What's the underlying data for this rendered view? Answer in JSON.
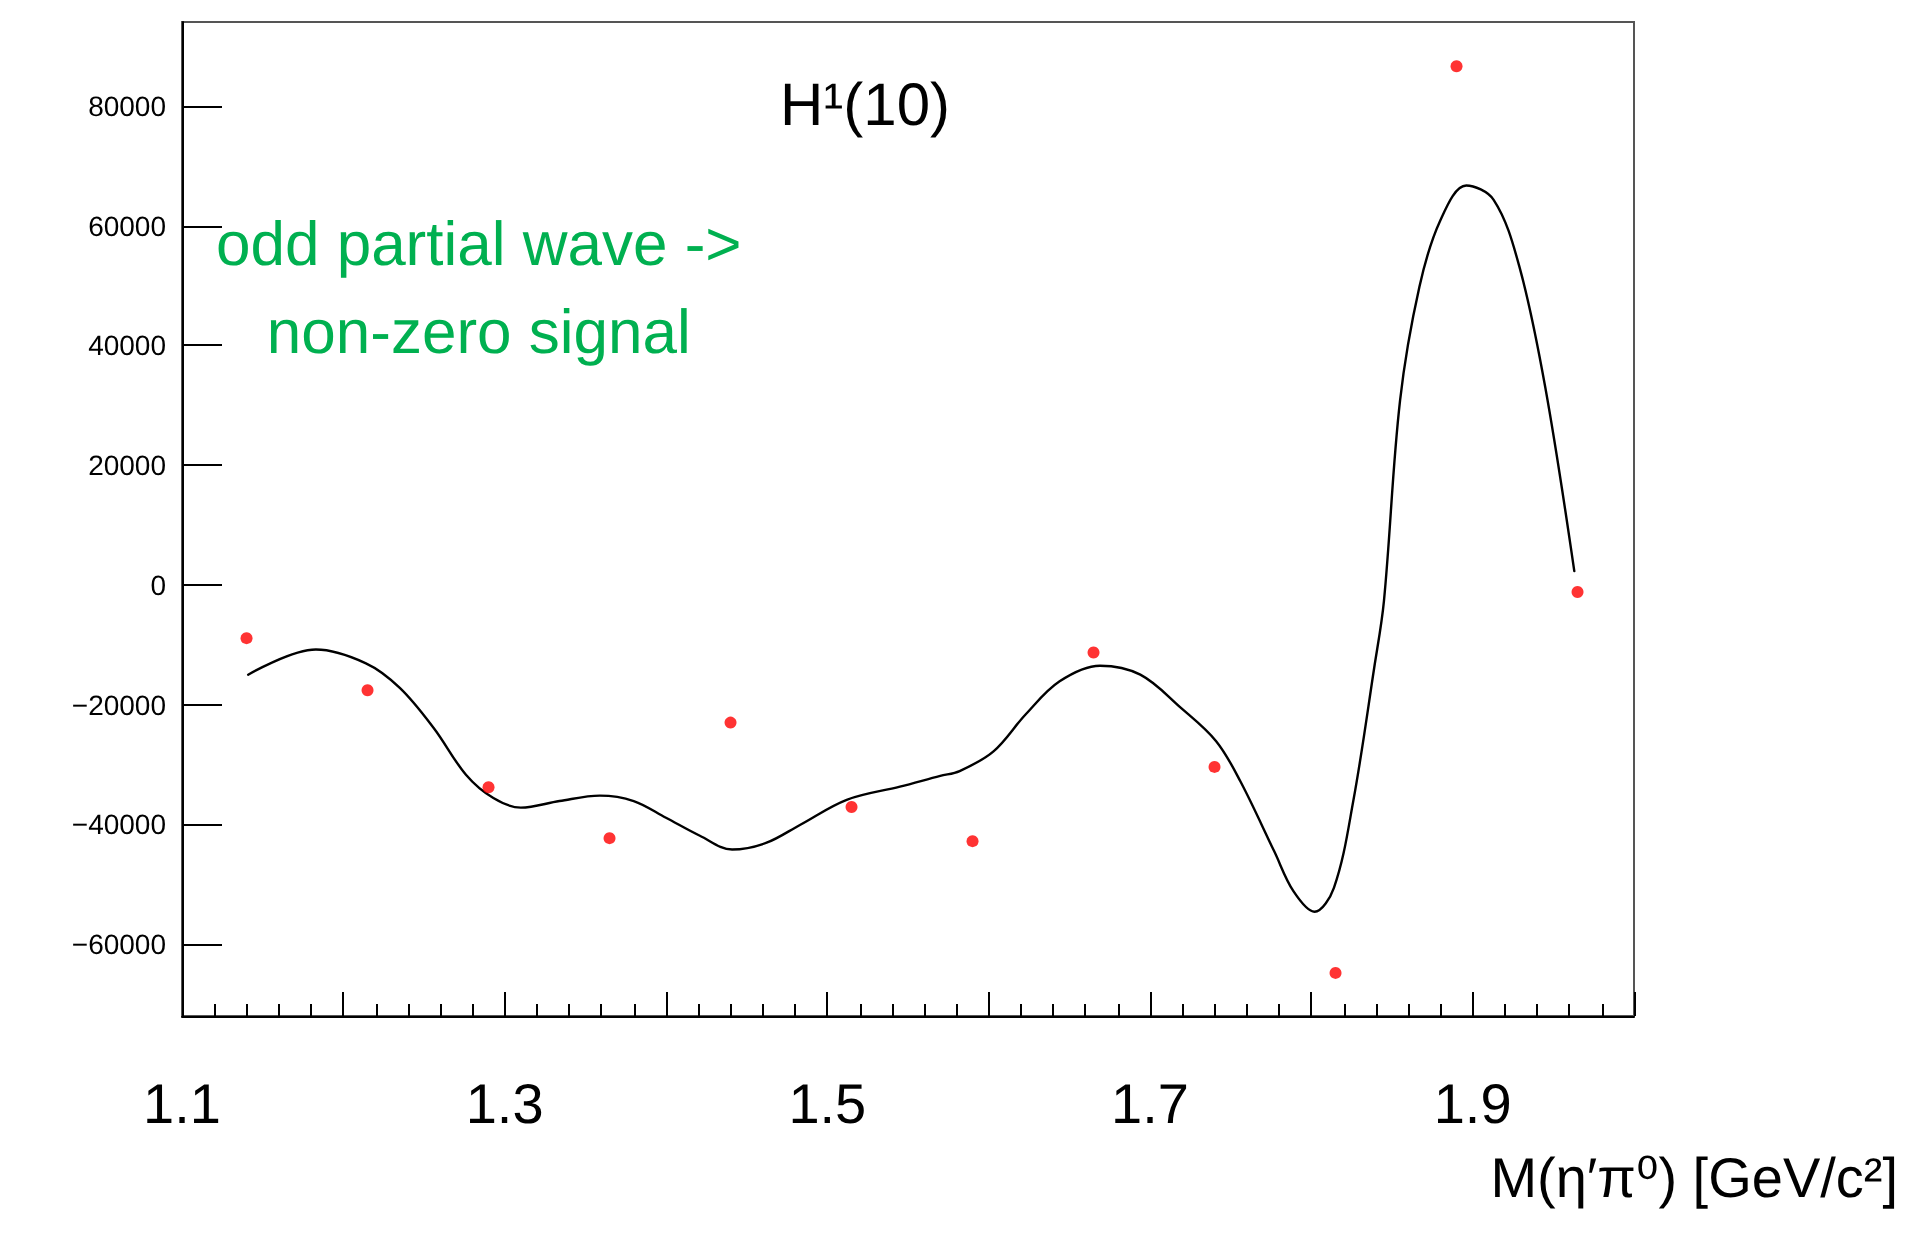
{
  "chart_data": {
    "type": "scatter",
    "title": "H¹(10)",
    "xlabel": "M(η′π⁰) [GeV/c²]",
    "annotations": [
      "odd partial wave ->\nnon-zero signal"
    ],
    "xlim": [
      1.1,
      2.0
    ],
    "xticks": [
      1.1,
      {
        "value": 1.2,
        "label": null
      },
      1.3,
      {
        "value": 1.4,
        "label": null
      },
      1.5,
      {
        "value": 1.6,
        "label": null
      },
      1.7,
      {
        "value": 1.8,
        "label": null
      },
      1.9,
      {
        "value": 2.0,
        "label": null
      }
    ],
    "ylim": [
      -72000,
      94000
    ],
    "yticks": [
      -60000,
      -40000,
      -20000,
      0,
      20000,
      40000,
      60000,
      80000
    ],
    "grid": false,
    "marker": "circle",
    "series": [
      {
        "color": "#ff0000",
        "x": [
          1.14,
          1.215,
          1.29,
          1.365,
          1.44,
          1.515,
          1.59,
          1.665,
          1.74,
          1.815,
          1.89,
          1.965
        ],
        "values": [
          -8900,
          -17600,
          -33800,
          -42300,
          -23000,
          -37100,
          -42800,
          -11300,
          -30400,
          -64800,
          86600,
          -1200
        ]
      },
      {
        "type": "line",
        "color": "#000000",
        "marker": "none",
        "line_style": "solid",
        "x": [
          1.141,
          1.183,
          1.214,
          1.235,
          1.256,
          1.276,
          1.293,
          1.31,
          1.334,
          1.359,
          1.38,
          1.4,
          1.421,
          1.441,
          1.462,
          1.483,
          1.512,
          1.545,
          1.57,
          1.582,
          1.603,
          1.623,
          1.644,
          1.669,
          1.694,
          1.719,
          1.741,
          1.756,
          1.777,
          1.789,
          1.802,
          1.814,
          1.826,
          1.839,
          1.845,
          1.855,
          1.867,
          1.88,
          1.896,
          1.913,
          1.929,
          1.945,
          1.963
        ],
        "values": [
          -15000,
          -10800,
          -13100,
          -17200,
          -23900,
          -31700,
          -35600,
          -37200,
          -36100,
          -35200,
          -36100,
          -38900,
          -41900,
          -44200,
          -43100,
          -40100,
          -35900,
          -33700,
          -31900,
          -31100,
          -27800,
          -21600,
          -16100,
          -13500,
          -15000,
          -20500,
          -26100,
          -32800,
          -44500,
          -51200,
          -54600,
          -50600,
          -36100,
          -13800,
          -2700,
          30800,
          49800,
          60900,
          66700,
          64300,
          53100,
          33000,
          2300
        ]
      }
    ]
  }
}
